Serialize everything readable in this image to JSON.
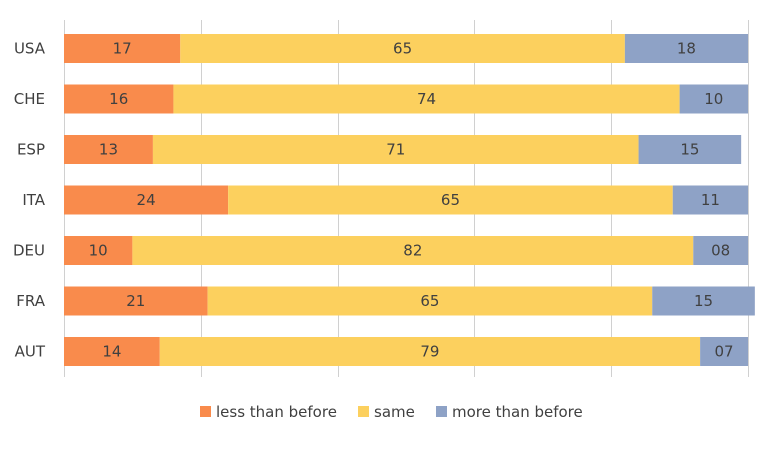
{
  "chart_data": {
    "type": "bar",
    "orientation": "horizontal",
    "stacked": true,
    "title": "",
    "xlabel": "",
    "ylabel": "",
    "xlim": [
      0,
      100
    ],
    "grid": "vertical",
    "legend_position": "bottom",
    "categories": [
      "USA",
      "CHE",
      "ESP",
      "ITA",
      "DEU",
      "FRA",
      "AUT"
    ],
    "series": [
      {
        "name": "less than before",
        "color": "#F98B4C",
        "values": [
          17,
          16,
          13,
          24,
          10,
          21,
          14
        ],
        "labels": [
          "17",
          "16",
          "13",
          "24",
          "10",
          "21",
          "14"
        ]
      },
      {
        "name": "same",
        "color": "#FCD05E",
        "values": [
          65,
          74,
          71,
          65,
          82,
          65,
          79
        ],
        "labels": [
          "65",
          "74",
          "71",
          "65",
          "82",
          "65",
          "79"
        ]
      },
      {
        "name": "more than before",
        "color": "#8EA2C6",
        "values": [
          18,
          10,
          15,
          11,
          8,
          15,
          7
        ],
        "labels": [
          "18",
          "10",
          "15",
          "11",
          "08",
          "15",
          "07"
        ]
      }
    ]
  }
}
